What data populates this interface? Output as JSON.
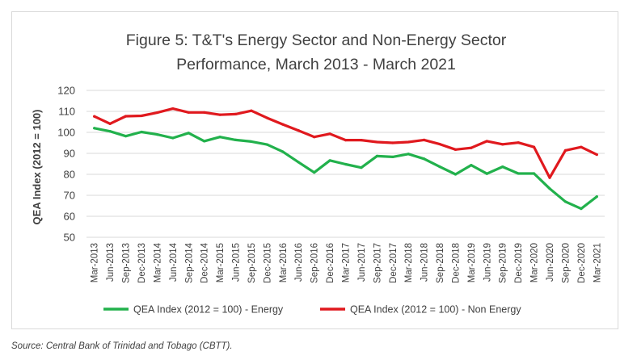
{
  "source_note": "Source: Central Bank of Trinidad and Tobago (CBTT).",
  "chart_data": {
    "type": "line",
    "title_lines": [
      "Figure 5: T&T's Energy Sector and Non-Energy Sector",
      "Performance, March 2013 - March 2021"
    ],
    "xlabel": "",
    "ylabel": "QEA Index (2012 = 100)",
    "ylim": [
      50,
      120
    ],
    "yticks": [
      50,
      60,
      70,
      80,
      90,
      100,
      110,
      120
    ],
    "grid": true,
    "legend_position": "bottom",
    "categories": [
      "Mar-2013",
      "Jun-2013",
      "Sep-2013",
      "Dec-2013",
      "Mar-2014",
      "Jun-2014",
      "Sep-2014",
      "Dec-2014",
      "Mar-2015",
      "Jun-2015",
      "Sep-2015",
      "Dec-2015",
      "Mar-2016",
      "Jun-2016",
      "Sep-2016",
      "Dec-2016",
      "Mar-2017",
      "Jun-2017",
      "Sep-2017",
      "Dec-2017",
      "Mar-2018",
      "Jun-2018",
      "Sep-2018",
      "Dec-2018",
      "Mar-2019",
      "Jun-2019",
      "Sep-2019",
      "Dec-2019",
      "Mar-2020",
      "Jun-2020",
      "Sep-2020",
      "Dec-2020",
      "Mar-2021"
    ],
    "series": [
      {
        "name": "QEA Index (2012 = 100) - Energy",
        "color": "#22b14c",
        "values": [
          102,
          100.5,
          98.2,
          100.2,
          99,
          97.3,
          99.7,
          95.8,
          97.8,
          96.4,
          95.6,
          94.2,
          90.8,
          85.8,
          80.9,
          86.6,
          84.8,
          83.2,
          88.7,
          88.3,
          89.7,
          87.4,
          83.6,
          80,
          84.4,
          80.3,
          83.6,
          80.4,
          80.4,
          73.2,
          67,
          63.6,
          69.4
        ]
      },
      {
        "name": "QEA Index (2012 = 100) - Non Energy",
        "color": "#e0191e",
        "values": [
          107.6,
          104.1,
          107.7,
          107.9,
          109.4,
          111.3,
          109.5,
          109.5,
          108.4,
          108.7,
          110.3,
          106.9,
          103.8,
          100.9,
          97.8,
          99.3,
          96.3,
          96.3,
          95.4,
          95,
          95.4,
          96.4,
          94.4,
          91.8,
          92.6,
          95.8,
          94.3,
          95.1,
          93,
          78.4,
          91.4,
          93,
          89.4
        ]
      }
    ]
  }
}
